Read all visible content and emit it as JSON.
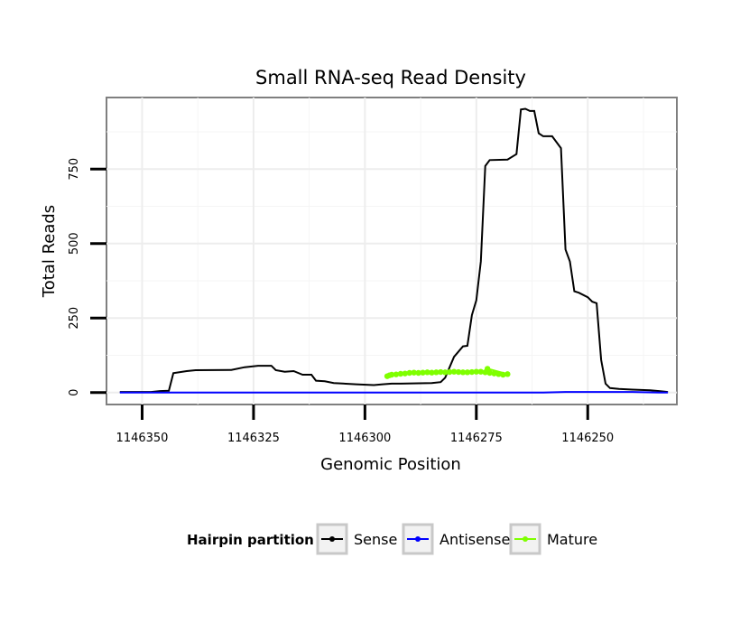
{
  "chart_data": {
    "type": "line",
    "title": "Small RNA-seq Read Density",
    "xlabel": "Genomic Position",
    "ylabel": "Total Reads",
    "x_reversed": true,
    "xlim": [
      1146358,
      1146230
    ],
    "ylim": [
      -40,
      990
    ],
    "x_ticks": [
      1146350,
      1146325,
      1146300,
      1146275,
      1146250
    ],
    "x_tick_labels": [
      "1146350",
      "1146325",
      "1146300",
      "1146275",
      "1146250"
    ],
    "y_ticks": [
      0,
      250,
      500,
      750
    ],
    "y_tick_labels": [
      "0",
      "250",
      "500",
      "750"
    ],
    "grid": true,
    "legend": {
      "title": "Hairpin partition",
      "position": "bottom",
      "entries": [
        "Sense",
        "Antisense",
        "Mature"
      ]
    },
    "series": [
      {
        "name": "Sense",
        "color": "#000000",
        "points": [
          [
            1146355,
            2
          ],
          [
            1146348,
            2
          ],
          [
            1146346,
            5
          ],
          [
            1146344,
            6
          ],
          [
            1146343,
            65
          ],
          [
            1146340,
            72
          ],
          [
            1146338,
            75
          ],
          [
            1146330,
            76
          ],
          [
            1146327,
            85
          ],
          [
            1146324,
            90
          ],
          [
            1146321,
            90
          ],
          [
            1146320,
            75
          ],
          [
            1146318,
            70
          ],
          [
            1146316,
            72
          ],
          [
            1146314,
            60
          ],
          [
            1146312,
            60
          ],
          [
            1146311,
            40
          ],
          [
            1146309,
            38
          ],
          [
            1146307,
            32
          ],
          [
            1146302,
            28
          ],
          [
            1146298,
            25
          ],
          [
            1146296,
            28
          ],
          [
            1146294,
            30
          ],
          [
            1146292,
            30
          ],
          [
            1146285,
            32
          ],
          [
            1146283,
            35
          ],
          [
            1146282,
            50
          ],
          [
            1146280,
            120
          ],
          [
            1146278,
            155
          ],
          [
            1146277,
            157
          ],
          [
            1146276,
            260
          ],
          [
            1146275,
            310
          ],
          [
            1146274,
            440
          ],
          [
            1146273,
            760
          ],
          [
            1146272,
            780
          ],
          [
            1146268,
            782
          ],
          [
            1146266,
            800
          ],
          [
            1146265,
            950
          ],
          [
            1146264,
            952
          ],
          [
            1146263,
            945
          ],
          [
            1146262,
            945
          ],
          [
            1146261,
            870
          ],
          [
            1146260,
            860
          ],
          [
            1146258,
            860
          ],
          [
            1146256,
            820
          ],
          [
            1146255,
            480
          ],
          [
            1146254,
            440
          ],
          [
            1146253,
            340
          ],
          [
            1146252,
            335
          ],
          [
            1146250,
            320
          ],
          [
            1146249,
            305
          ],
          [
            1146248,
            300
          ],
          [
            1146247,
            110
          ],
          [
            1146246,
            30
          ],
          [
            1146245,
            15
          ],
          [
            1146243,
            12
          ],
          [
            1146240,
            10
          ],
          [
            1146236,
            8
          ],
          [
            1146234,
            5
          ],
          [
            1146232,
            2
          ]
        ]
      },
      {
        "name": "Antisense",
        "color": "#0000ff",
        "points": [
          [
            1146355,
            0
          ],
          [
            1146300,
            0
          ],
          [
            1146260,
            0
          ],
          [
            1146255,
            2
          ],
          [
            1146245,
            2
          ],
          [
            1146240,
            2
          ],
          [
            1146234,
            0
          ],
          [
            1146232,
            0
          ]
        ]
      },
      {
        "name": "Mature",
        "color": "#7fff00",
        "points": [
          [
            1146295,
            55
          ],
          [
            1146294.5,
            58
          ],
          [
            1146294,
            60
          ],
          [
            1146293,
            61
          ],
          [
            1146292,
            63
          ],
          [
            1146291,
            64
          ],
          [
            1146290,
            66
          ],
          [
            1146289,
            67
          ],
          [
            1146288,
            66
          ],
          [
            1146287,
            67
          ],
          [
            1146286,
            68
          ],
          [
            1146285,
            67
          ],
          [
            1146284,
            68
          ],
          [
            1146283,
            69
          ],
          [
            1146282,
            68
          ],
          [
            1146281,
            69
          ],
          [
            1146280,
            70
          ],
          [
            1146279,
            69
          ],
          [
            1146278,
            68
          ],
          [
            1146277,
            68
          ],
          [
            1146276,
            69
          ],
          [
            1146275,
            70
          ],
          [
            1146274,
            70
          ],
          [
            1146273,
            68
          ],
          [
            1146272,
            66
          ],
          [
            1146271,
            64
          ],
          [
            1146270,
            62
          ],
          [
            1146269,
            60
          ],
          [
            1146268,
            62
          ],
          [
            1146272.5,
            80
          ]
        ]
      }
    ]
  }
}
